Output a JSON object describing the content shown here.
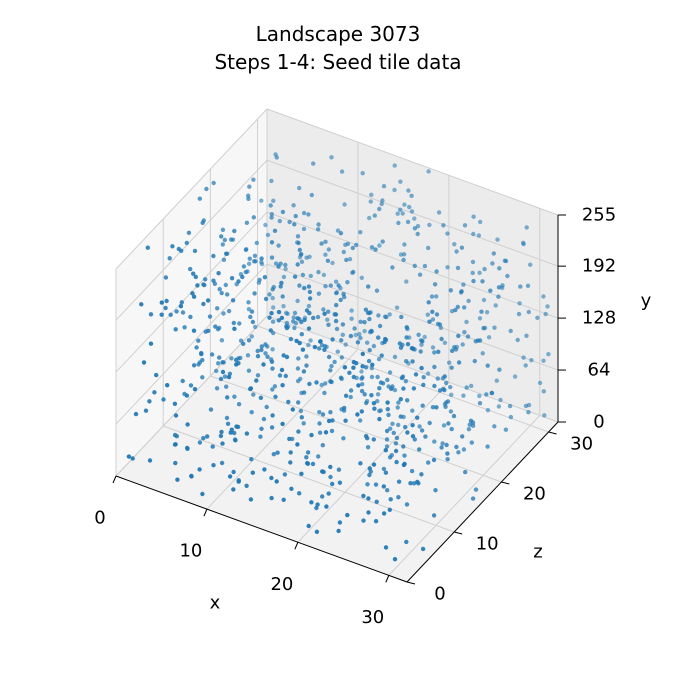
{
  "chart_data": {
    "type": "scatter",
    "projection": "3d",
    "title": "Landscape 3073",
    "subtitle": "Steps 1-4: Seed tile data",
    "xlabel": "x",
    "ylabel": "y",
    "zlabel": "z",
    "xlim": [
      0,
      32
    ],
    "ylim": [
      0,
      255
    ],
    "zlim": [
      0,
      32
    ],
    "x_ticks": [
      0,
      10,
      20,
      30
    ],
    "y_ticks": [
      0,
      64,
      128,
      192,
      255
    ],
    "z_ticks": [
      0,
      10,
      20,
      30
    ],
    "grid": true,
    "marker_color": "#1f77b4",
    "point_count": 900,
    "point_distribution": "uniform random x in [0,32], z in [0,32], y in [0,255]"
  }
}
